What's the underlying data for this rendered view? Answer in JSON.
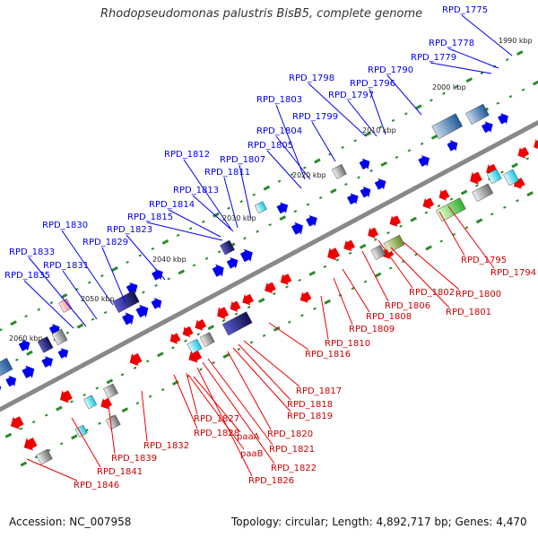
{
  "title": "Rhodopseudomonas palustris BisB5, complete genome",
  "footer": {
    "accession": "Accession: NC_007958",
    "summary": "Topology: circular; Length: 4,892,717 bp; Genes: 4,470"
  },
  "colors": {
    "forward_strand": "#0000ee",
    "reverse_strand": "#ee0000",
    "backbone": "#888888",
    "tick": "#2a8a2a"
  },
  "scale_labels": [
    "1990 kbp",
    "2000 kbp",
    "2010 kbp",
    "2020 kbp",
    "2030 kbp",
    "2040 kbp",
    "2050 kbp",
    "2060 kbp"
  ],
  "forward_genes": [
    "RPD_1775",
    "RPD_1778",
    "RPD_1779",
    "RPD_1790",
    "RPD_1796",
    "RPD_1797",
    "RPD_1798",
    "RPD_1799",
    "RPD_1803",
    "RPD_1804",
    "RPD_1805",
    "RPD_1807",
    "RPD_1811",
    "RPD_1812",
    "RPD_1813",
    "RPD_1814",
    "RPD_1815",
    "RPD_1823",
    "RPD_1829",
    "RPD_1830",
    "RPD_1831",
    "RPD_1833",
    "RPD_1835"
  ],
  "reverse_genes": [
    "RPD_1794",
    "RPD_1795",
    "RPD_1800",
    "RPD_1801",
    "RPD_1802",
    "RPD_1806",
    "RPD_1808",
    "RPD_1809",
    "RPD_1810",
    "RPD_1816",
    "RPD_1817",
    "RPD_1818",
    "RPD_1819",
    "RPD_1820",
    "RPD_1821",
    "RPD_1822",
    "RPD_1826",
    "RPD_1827",
    "RPD_1828",
    "RPD_1832",
    "RPD_1839",
    "RPD_1841",
    "RPD_1846",
    "paaA",
    "paaB"
  ]
}
